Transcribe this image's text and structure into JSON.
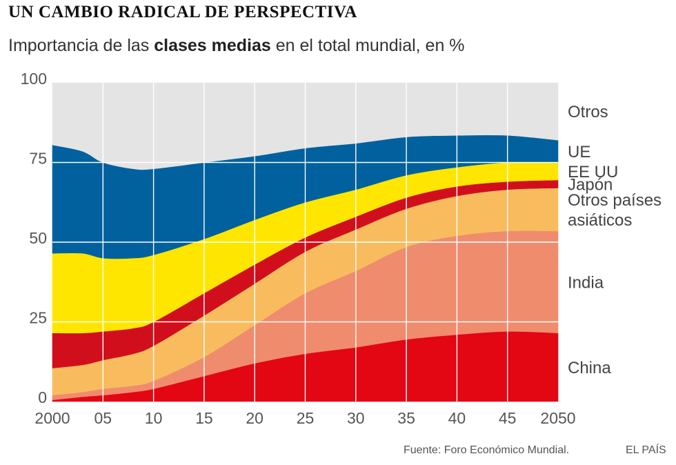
{
  "chart_data": {
    "type": "area",
    "stacked": true,
    "title": "UN CAMBIO RADICAL DE PERSPECTIVA",
    "subtitle_pre": "Importancia de las ",
    "subtitle_bold": "clases medias",
    "subtitle_post": " en el total mundial, en %",
    "xlabel": "",
    "ylabel": "",
    "x": [
      2000,
      2003,
      2005,
      2008,
      2010,
      2015,
      2020,
      2025,
      2030,
      2035,
      2040,
      2045,
      2050
    ],
    "x_tick_values": [
      2000,
      2005,
      2010,
      2015,
      2020,
      2025,
      2030,
      2035,
      2040,
      2045,
      2050
    ],
    "x_tick_labels": [
      "2000",
      "05",
      "10",
      "15",
      "20",
      "25",
      "30",
      "35",
      "40",
      "45",
      "2050"
    ],
    "y_tick_values": [
      0,
      25,
      50,
      75,
      100
    ],
    "y_tick_labels": [
      "0",
      "25",
      "50",
      "75",
      "100"
    ],
    "ylim": [
      0,
      100
    ],
    "xlim": [
      2000,
      2050
    ],
    "series": [
      {
        "name": "China",
        "color": "#e30613",
        "values": [
          0.5,
          1.5,
          2,
          3,
          4,
          8,
          12,
          15,
          17,
          19.5,
          21,
          22,
          21.5
        ]
      },
      {
        "name": "India",
        "color": "#f08c6e",
        "values": [
          1.5,
          1.5,
          2,
          2,
          2.5,
          6,
          12,
          19,
          24,
          29,
          31,
          31.5,
          32
        ]
      },
      {
        "name": "Otros países asiáticos",
        "color": "#f8bc5f",
        "values": [
          8.5,
          8.5,
          9,
          10,
          11,
          13,
          13,
          13,
          13,
          12,
          12.5,
          13,
          13.5
        ]
      },
      {
        "name": "Japón",
        "color": "#d10f1c",
        "values": [
          11,
          10,
          9,
          8,
          7.5,
          7,
          6,
          4.5,
          4,
          3.5,
          3,
          2.5,
          2.5
        ]
      },
      {
        "name": "EE UU",
        "color": "#ffe600",
        "values": [
          25,
          25,
          23,
          22,
          21,
          17,
          14,
          11,
          8.5,
          7,
          6,
          6,
          5.5
        ]
      },
      {
        "name": "UE",
        "color": "#00619e",
        "values": [
          34,
          32,
          30,
          28,
          27,
          24,
          20,
          17,
          14.5,
          12,
          10,
          8.5,
          7
        ]
      },
      {
        "name": "Otros",
        "color": "#e4e4e4",
        "values": [
          19.5,
          21.5,
          25,
          27,
          27,
          25,
          23,
          20.5,
          19,
          17,
          16.5,
          16.5,
          18
        ]
      }
    ],
    "labels": [
      {
        "series": "Otros",
        "lines": [
          "Otros"
        ]
      },
      {
        "series": "UE",
        "lines": [
          "UE"
        ]
      },
      {
        "series": "EE UU",
        "lines": [
          "EE UU"
        ]
      },
      {
        "series": "Japón",
        "lines": [
          "Japón"
        ]
      },
      {
        "series": "Otros países asiáticos",
        "lines": [
          "Otros países",
          "asiáticos"
        ]
      },
      {
        "series": "India",
        "lines": [
          "India"
        ]
      },
      {
        "series": "China",
        "lines": [
          "China"
        ]
      }
    ],
    "grid": true,
    "grid_color": "#ffffff"
  },
  "footer": {
    "source": "Fuente: Foro Económico Mundial.",
    "brand": "EL PAÍS"
  }
}
